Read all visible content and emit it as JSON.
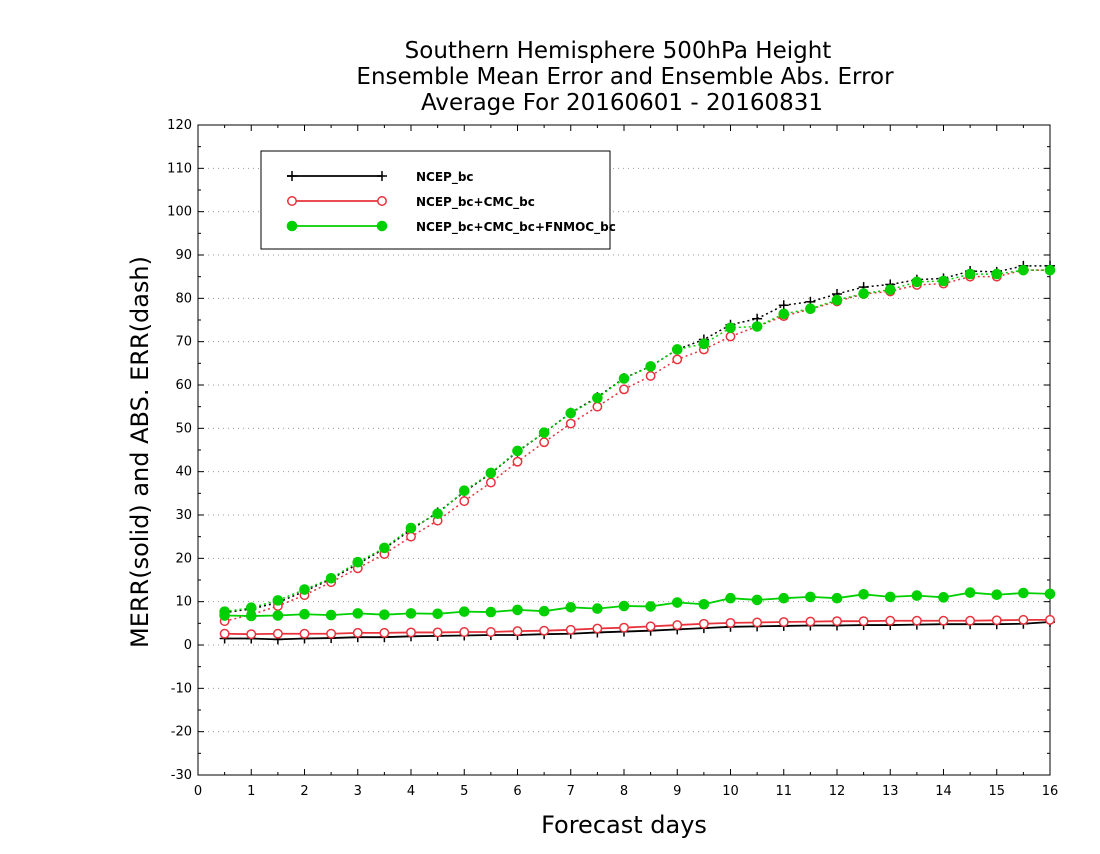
{
  "chart_data": {
    "type": "line",
    "title": [
      "Southern Hemisphere 500hPa Height",
      "Ensemble Mean Error and Ensemble Abs. Error",
      "Average For 20160601 - 20160831"
    ],
    "xlabel": "Forecast days",
    "ylabel": "MERR(solid) and ABS. ERR(dash)",
    "xlim": [
      0,
      16
    ],
    "ylim": [
      -30,
      120
    ],
    "xticks": [
      "0",
      "1",
      "2",
      "3",
      "4",
      "5",
      "6",
      "7",
      "8",
      "9",
      "10",
      "11",
      "12",
      "13",
      "14",
      "15",
      "16"
    ],
    "yticks": [
      "-30",
      "-20",
      "-10",
      "0",
      "10",
      "20",
      "30",
      "40",
      "50",
      "60",
      "70",
      "80",
      "90",
      "100",
      "110",
      "120"
    ],
    "grid": "horizontal dotted",
    "legend_position": "top-left",
    "x": [
      0.5,
      1,
      1.5,
      2,
      2.5,
      3,
      3.5,
      4,
      4.5,
      5,
      5.5,
      6,
      6.5,
      7,
      7.5,
      8,
      8.5,
      9,
      9.5,
      10,
      10.5,
      11,
      11.5,
      12,
      12.5,
      13,
      13.5,
      14,
      14.5,
      15,
      15.5,
      16
    ],
    "series": [
      {
        "name": "NCEP_bc",
        "color": "#000000",
        "marker": "plus",
        "merr": [
          1.5,
          1.5,
          1.3,
          1.5,
          1.6,
          1.8,
          1.8,
          2.0,
          2.1,
          2.2,
          2.3,
          2.3,
          2.5,
          2.6,
          2.9,
          3.1,
          3.3,
          3.6,
          3.9,
          4.2,
          4.3,
          4.4,
          4.5,
          4.5,
          4.6,
          4.6,
          4.7,
          4.8,
          4.8,
          4.8,
          4.9,
          5.3
        ],
        "abs_err": [
          7.5,
          8.3,
          9.8,
          12.4,
          15.2,
          18.7,
          22.2,
          26.6,
          30.6,
          35.3,
          39.6,
          44.6,
          49.0,
          53.6,
          57.2,
          61.6,
          64.3,
          68.2,
          70.5,
          73.9,
          75.3,
          78.4,
          79.2,
          81.0,
          82.6,
          83.2,
          84.3,
          84.6,
          86.3,
          86.1,
          87.5,
          87.5
        ]
      },
      {
        "name": "NCEP_bc+CMC_bc",
        "color": "#e8323c",
        "marker": "open-circle",
        "merr": [
          2.6,
          2.5,
          2.6,
          2.6,
          2.6,
          2.8,
          2.8,
          2.9,
          2.9,
          3.0,
          3.0,
          3.2,
          3.3,
          3.5,
          3.8,
          4.0,
          4.3,
          4.6,
          4.9,
          5.1,
          5.2,
          5.3,
          5.4,
          5.5,
          5.5,
          5.6,
          5.6,
          5.6,
          5.6,
          5.7,
          5.8,
          5.8
        ],
        "abs_err": [
          5.5,
          7.0,
          9.0,
          11.5,
          14.5,
          17.7,
          21.0,
          25.0,
          28.7,
          33.2,
          37.5,
          42.3,
          46.8,
          51.1,
          55.0,
          59.0,
          62.1,
          65.9,
          68.2,
          71.2,
          73.5,
          75.9,
          77.5,
          79.3,
          81.0,
          81.6,
          83.1,
          83.4,
          85.0,
          85.0,
          86.5,
          86.5
        ]
      },
      {
        "name": "NCEP_bc+CMC_bc+FNMOC_bc",
        "color": "#00d000",
        "marker": "filled-circle",
        "merr": [
          6.8,
          6.7,
          6.8,
          7.1,
          6.9,
          7.3,
          7.0,
          7.3,
          7.2,
          7.7,
          7.6,
          8.1,
          7.8,
          8.7,
          8.4,
          9.0,
          8.9,
          9.8,
          9.4,
          10.8,
          10.4,
          10.8,
          11.1,
          10.8,
          11.7,
          11.1,
          11.4,
          11.0,
          12.1,
          11.6,
          12.0,
          11.8
        ],
        "abs_err": [
          7.7,
          8.6,
          10.3,
          12.8,
          15.4,
          19.1,
          22.4,
          27.0,
          30.3,
          35.6,
          39.7,
          44.8,
          49.0,
          53.5,
          57.0,
          61.5,
          64.3,
          68.2,
          69.5,
          73.2,
          73.5,
          76.4,
          77.6,
          79.6,
          81.1,
          82.0,
          83.8,
          84.0,
          85.6,
          85.6,
          86.5,
          86.5
        ]
      }
    ]
  }
}
